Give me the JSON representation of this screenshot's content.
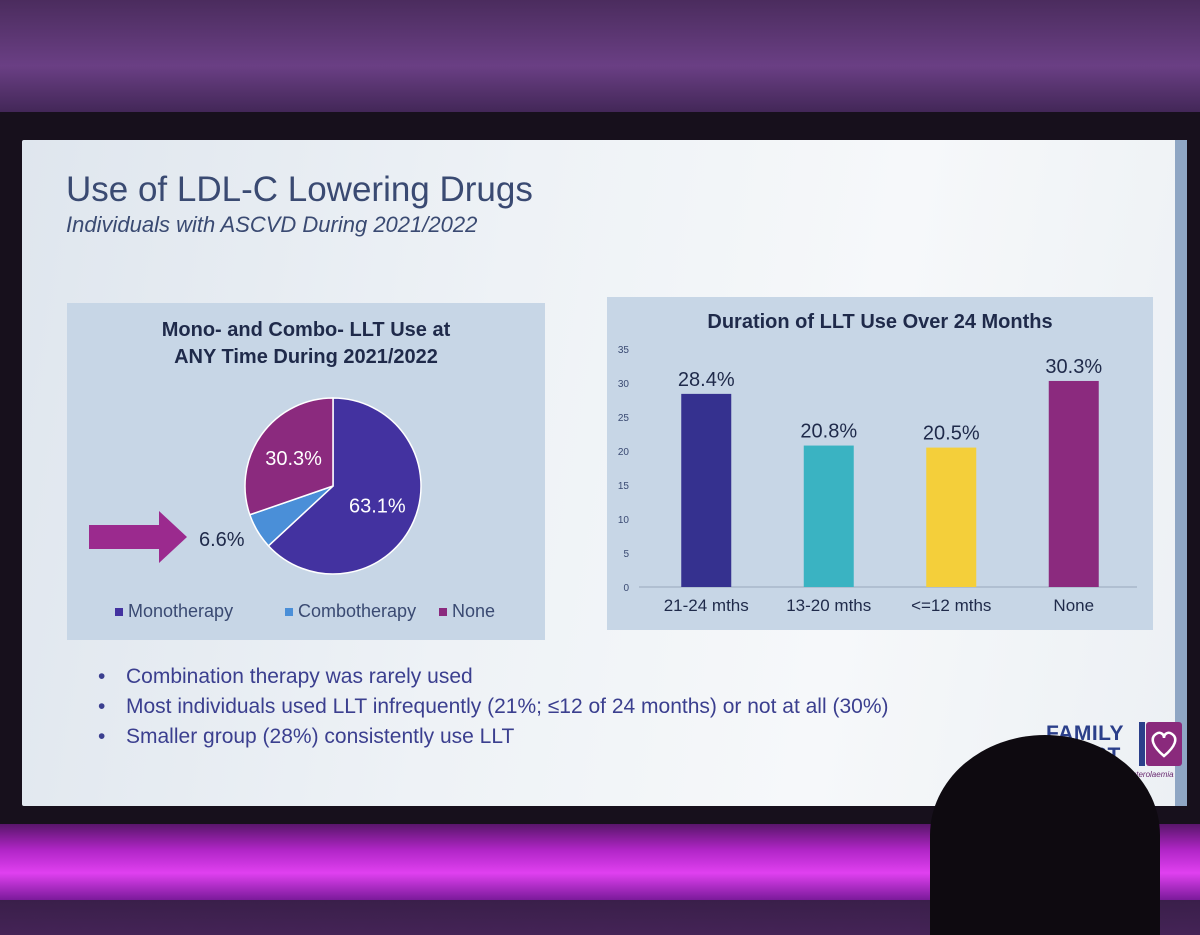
{
  "slide": {
    "title": "Use of LDL-C Lowering Drugs",
    "subtitle": "Individuals with ASCVD During 2021/2022"
  },
  "left_chart": {
    "title_line1": "Mono- and Combo- LLT Use at",
    "title_line2": "ANY Time During 2021/2022",
    "arrow_label": "6.6%"
  },
  "chart_data": [
    {
      "type": "pie",
      "title": "Mono- and Combo- LLT Use at ANY Time During 2021/2022",
      "slices": [
        {
          "label": "Monotherapy",
          "value": 63.1,
          "display": "63.1%",
          "color": "#4332a0"
        },
        {
          "label": "Combotherapy",
          "value": 6.6,
          "display": "6.6%",
          "color": "#4a8fd8"
        },
        {
          "label": "None",
          "value": 30.3,
          "display": "30.3%",
          "color": "#8b2a7e"
        }
      ],
      "legend": [
        "Monotherapy",
        "Combotherapy",
        "None"
      ],
      "legend_position": "bottom"
    },
    {
      "type": "bar",
      "title": "Duration of LLT Use Over 24 Months",
      "categories": [
        "21-24 mths",
        "13-20 mths",
        "<=12 mths",
        "None"
      ],
      "values": [
        28.4,
        20.8,
        20.5,
        30.3
      ],
      "labels": [
        "28.4%",
        "20.8%",
        "20.5%",
        "30.3%"
      ],
      "colors": [
        "#35318f",
        "#3ab3c2",
        "#f4cf3a",
        "#8b2a7e"
      ],
      "ylim": [
        0,
        35
      ],
      "yticks": [
        0,
        5,
        10,
        15,
        20,
        25,
        30,
        35
      ],
      "grid": false
    }
  ],
  "bullets": [
    "Combination therapy was rarely used",
    "Most individuals used LLT infrequently (21%; ≤12 of 24 months) or not at all (30%)",
    "Smaller group (28%) consistently use LLT"
  ],
  "bullet_symbol": "•",
  "logo": {
    "line1": "FAMILY",
    "line2": "HEART",
    "tagline": "Familial Hypercholesterolaemia"
  }
}
